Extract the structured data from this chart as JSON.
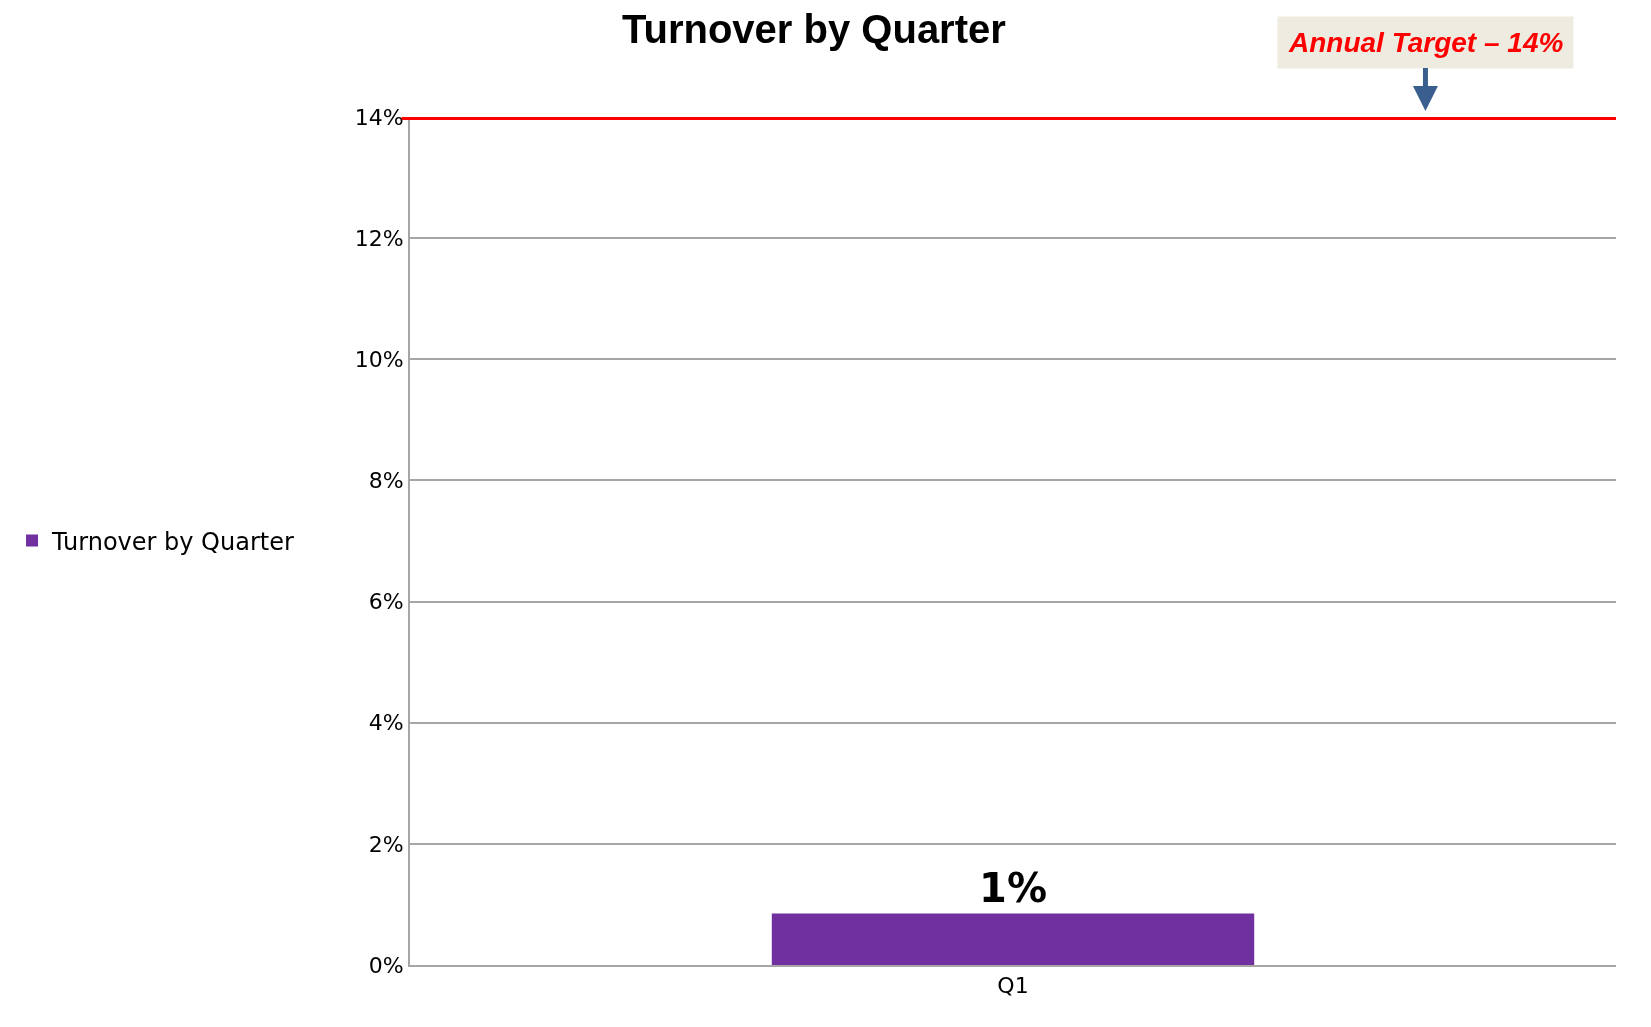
{
  "chart_data": {
    "type": "bar",
    "title": "Turnover by Quarter",
    "categories": [
      "Q1"
    ],
    "series": [
      {
        "name": "Turnover by Quarter",
        "color": "#7030a0",
        "values": [
          0.85
        ],
        "value_labels": [
          "1%"
        ]
      }
    ],
    "ylim": [
      0,
      14
    ],
    "yticks": [
      {
        "value": 0,
        "label": "0%"
      },
      {
        "value": 2,
        "label": "2%"
      },
      {
        "value": 4,
        "label": "4%"
      },
      {
        "value": 6,
        "label": "6%"
      },
      {
        "value": 8,
        "label": "8%"
      },
      {
        "value": 10,
        "label": "10%"
      },
      {
        "value": 12,
        "label": "12%"
      },
      {
        "value": 14,
        "label": "14%"
      }
    ],
    "ref_lines": [
      {
        "axis": "y",
        "value": 14,
        "label": "Annual Target – 14%",
        "color": "#ff0000"
      }
    ],
    "grid": "y",
    "legend": "left"
  }
}
